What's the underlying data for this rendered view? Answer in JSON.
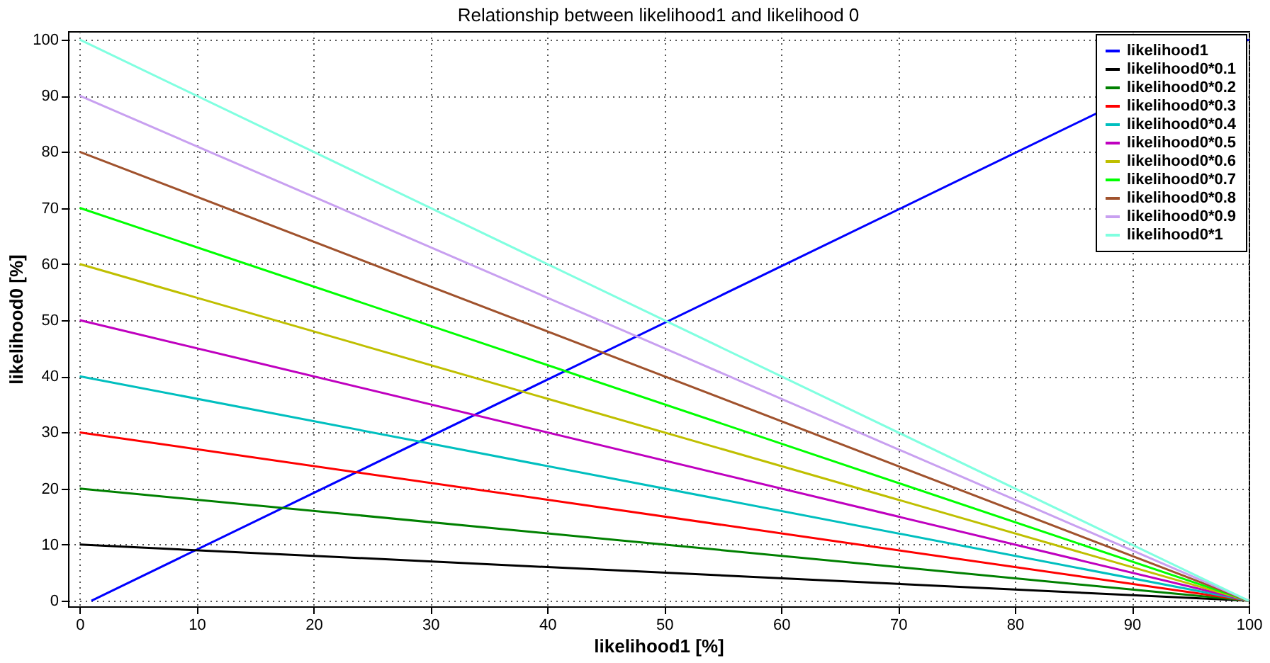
{
  "chart_data": {
    "type": "line",
    "title": "Relationship between likelihood1 and likelihood 0",
    "xlabel": "likelihood1 [%]",
    "ylabel": "likelihood0 [%]",
    "x": [
      0,
      100
    ],
    "series": [
      {
        "name": "likelihood1",
        "color": "#0000ff",
        "x": [
          1,
          100
        ],
        "values": [
          0,
          100
        ]
      },
      {
        "name": "likelihood0*0.1",
        "color": "#000000",
        "values": [
          10,
          0
        ]
      },
      {
        "name": "likelihood0*0.2",
        "color": "#008000",
        "values": [
          20,
          0
        ]
      },
      {
        "name": "likelihood0*0.3",
        "color": "#ff0000",
        "values": [
          30,
          0
        ]
      },
      {
        "name": "likelihood0*0.4",
        "color": "#00bfbf",
        "values": [
          40,
          0
        ]
      },
      {
        "name": "likelihood0*0.5",
        "color": "#bf00bf",
        "values": [
          50,
          0
        ]
      },
      {
        "name": "likelihood0*0.6",
        "color": "#bfbf00",
        "values": [
          60,
          0
        ]
      },
      {
        "name": "likelihood0*0.7",
        "color": "#00ff00",
        "values": [
          70,
          0
        ]
      },
      {
        "name": "likelihood0*0.8",
        "color": "#a0522d",
        "values": [
          80,
          0
        ]
      },
      {
        "name": "likelihood0*0.9",
        "color": "#c8a0f0",
        "values": [
          90,
          0
        ]
      },
      {
        "name": "likelihood0*1",
        "color": "#80ffe0",
        "values": [
          100,
          0
        ]
      }
    ],
    "xlim": [
      -1,
      100
    ],
    "ylim": [
      -1,
      101.5
    ],
    "xticks": [
      0,
      10,
      20,
      30,
      40,
      50,
      60,
      70,
      80,
      90,
      100
    ],
    "yticks": [
      0,
      10,
      20,
      30,
      40,
      50,
      60,
      70,
      80,
      90,
      100
    ],
    "grid": true,
    "legend": "top right",
    "marker": "none",
    "line_style": "solid"
  }
}
